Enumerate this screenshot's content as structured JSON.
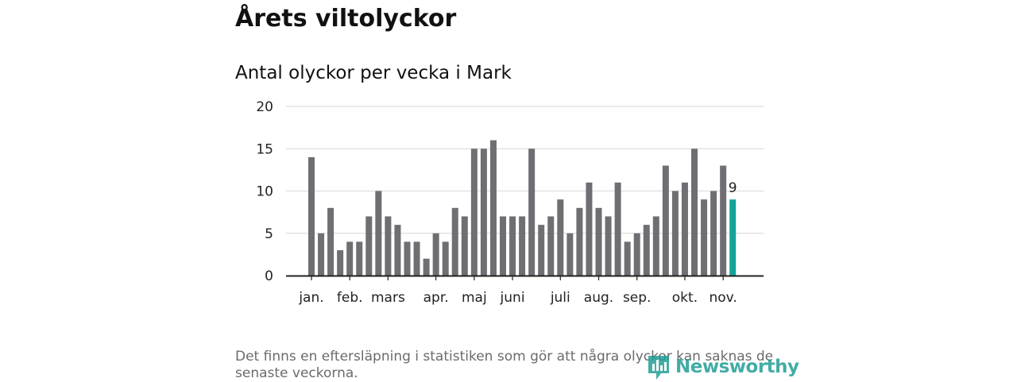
{
  "title": "Årets viltolyckor",
  "footnote": "Det finns en eftersläpning i statistiken som gör att några olyckor kan saknas de senaste veckorna.",
  "logo": {
    "text": "Newsworthy",
    "color": "#1a9b93"
  },
  "chart_data": {
    "type": "bar",
    "title": "Antal olyckor per vecka i Mark",
    "xlabel": "",
    "ylabel": "",
    "ylim": [
      0,
      20
    ],
    "yticks": [
      0,
      5,
      10,
      15,
      20
    ],
    "grid": true,
    "legend": "none",
    "colors": {
      "bar": "#6f6e73",
      "highlight": "#14a39a",
      "grid": "#dddddd",
      "axis": "#222222"
    },
    "values": [
      14,
      5,
      8,
      3,
      4,
      4,
      7,
      10,
      7,
      6,
      4,
      4,
      2,
      5,
      4,
      8,
      7,
      15,
      15,
      16,
      7,
      7,
      7,
      15,
      6,
      7,
      9,
      5,
      8,
      11,
      8,
      7,
      11,
      4,
      5,
      6,
      7,
      13,
      10,
      11,
      15,
      9,
      10,
      13,
      9
    ],
    "highlight_index": 44,
    "highlight_label": "9",
    "month_labels": [
      {
        "label": "jan.",
        "week_index": 0
      },
      {
        "label": "feb.",
        "week_index": 4
      },
      {
        "label": "mars",
        "week_index": 8
      },
      {
        "label": "apr.",
        "week_index": 13
      },
      {
        "label": "maj",
        "week_index": 17
      },
      {
        "label": "juni",
        "week_index": 21
      },
      {
        "label": "juli",
        "week_index": 26
      },
      {
        "label": "aug.",
        "week_index": 30
      },
      {
        "label": "sep.",
        "week_index": 34
      },
      {
        "label": "okt.",
        "week_index": 39
      },
      {
        "label": "nov.",
        "week_index": 43
      }
    ]
  }
}
